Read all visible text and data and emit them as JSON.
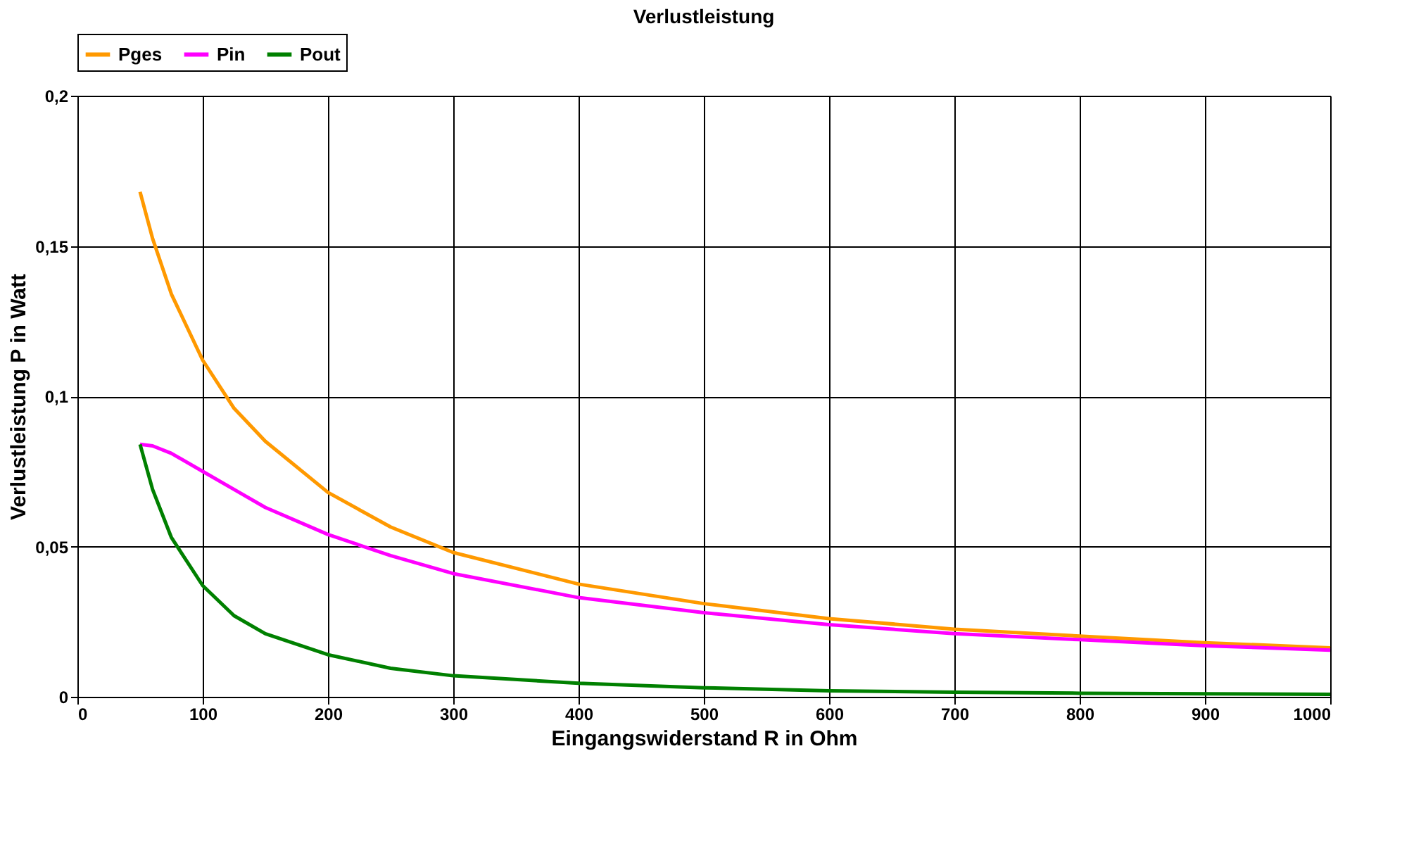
{
  "chart_data": {
    "type": "line",
    "title": "Verlustleistung",
    "xlabel": "Eingangswiderstand R in Ohm",
    "ylabel": "Verlustleistung P in Watt",
    "x": [
      50,
      60,
      75,
      100,
      125,
      150,
      200,
      250,
      300,
      400,
      500,
      600,
      700,
      800,
      900,
      1000
    ],
    "series": [
      {
        "name": "Pges",
        "color": "#ff9900",
        "values": [
          0.168,
          0.1525,
          0.134,
          0.112,
          0.096,
          0.085,
          0.068,
          0.0565,
          0.048,
          0.0375,
          0.031,
          0.026,
          0.0225,
          0.0202,
          0.018,
          0.0163
        ]
      },
      {
        "name": "Pin",
        "color": "#ff00ff",
        "values": [
          0.084,
          0.0835,
          0.081,
          0.075,
          0.069,
          0.063,
          0.054,
          0.047,
          0.041,
          0.033,
          0.028,
          0.024,
          0.021,
          0.019,
          0.017,
          0.0155
        ]
      },
      {
        "name": "Pout",
        "color": "#008000",
        "values": [
          0.084,
          0.069,
          0.053,
          0.037,
          0.027,
          0.021,
          0.014,
          0.0095,
          0.007,
          0.0045,
          0.003,
          0.002,
          0.0015,
          0.0012,
          0.001,
          0.0008
        ]
      }
    ],
    "xlim": [
      0,
      1000
    ],
    "xticks": [
      0,
      100,
      200,
      300,
      400,
      500,
      600,
      700,
      800,
      900,
      1000
    ],
    "ylim": [
      0,
      0.2
    ],
    "yticks": [
      0,
      {
        "value": 0.05,
        "label": "0,05"
      },
      {
        "value": 0.1,
        "label": "0,1"
      },
      {
        "value": 0.15,
        "label": "0,15"
      },
      {
        "value": 0.2,
        "label": "0,2"
      }
    ],
    "grid": true,
    "legend": "top",
    "marker": "none",
    "line_style": "solid"
  }
}
